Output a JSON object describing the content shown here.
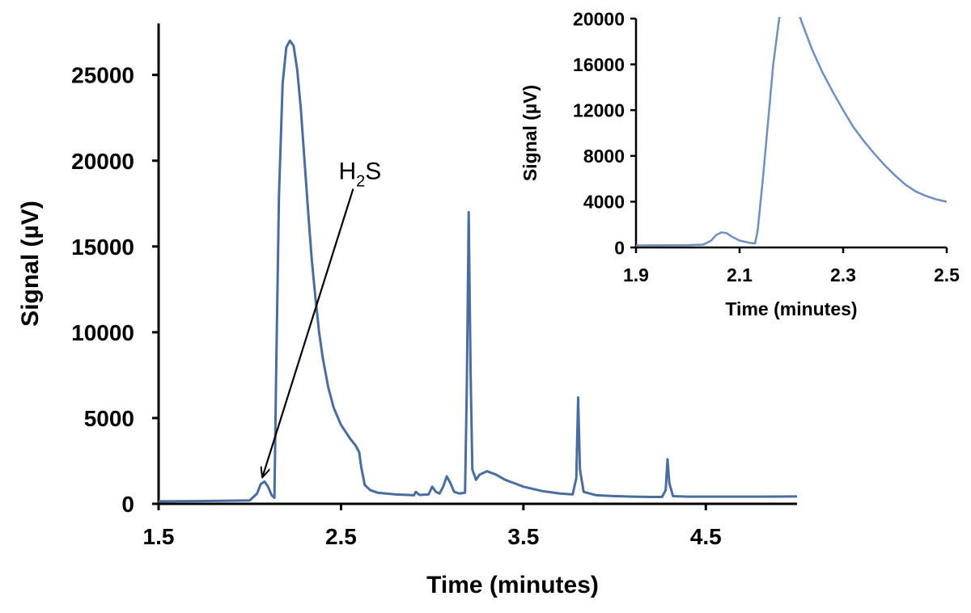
{
  "chart_data": [
    {
      "type": "line",
      "title": "",
      "xlabel": "Time (minutes)",
      "ylabel": "Signal (µV)",
      "xlim": [
        1.5,
        5.0
      ],
      "ylim": [
        0,
        28000
      ],
      "xticks": [
        "1.5",
        "2.5",
        "3.5",
        "4.5"
      ],
      "yticks": [
        "0",
        "5000",
        "10000",
        "15000",
        "20000",
        "25000"
      ],
      "grid": false,
      "line_color": "#4a6d9e",
      "annotation": {
        "text": "H",
        "sub": "2",
        "suffix": "S",
        "point": [
          2.07,
          1300
        ],
        "text_at": [
          2.62,
          19400
        ]
      },
      "series": [
        {
          "x": [
            1.5,
            1.7,
            1.9,
            2.0,
            2.04,
            2.06,
            2.08,
            2.1,
            2.12,
            2.135,
            2.145,
            2.16,
            2.18,
            2.2,
            2.22,
            2.24,
            2.26,
            2.28,
            2.3,
            2.32,
            2.34,
            2.36,
            2.38,
            2.4,
            2.43,
            2.46,
            2.5,
            2.55,
            2.58,
            2.6,
            2.61,
            2.63,
            2.66,
            2.7,
            2.8,
            2.9,
            2.91,
            2.93,
            2.98,
            3.0,
            3.02,
            3.04,
            3.06,
            3.08,
            3.1,
            3.12,
            3.15,
            3.18,
            3.19,
            3.2,
            3.21,
            3.22,
            3.24,
            3.26,
            3.3,
            3.35,
            3.4,
            3.5,
            3.6,
            3.7,
            3.77,
            3.79,
            3.8,
            3.81,
            3.83,
            3.9,
            4.0,
            4.1,
            4.2,
            4.26,
            4.28,
            4.29,
            4.3,
            4.32,
            4.4,
            4.6,
            4.8,
            5.0
          ],
          "y": [
            150,
            160,
            180,
            200,
            600,
            1150,
            1300,
            1000,
            500,
            350,
            8000,
            18000,
            24500,
            26600,
            27000,
            26700,
            25300,
            23000,
            20000,
            17000,
            14200,
            12000,
            10000,
            8500,
            6800,
            5600,
            4600,
            3800,
            3400,
            3000,
            2200,
            1100,
            800,
            650,
            550,
            500,
            700,
            520,
            550,
            1000,
            700,
            600,
            1000,
            1600,
            1200,
            700,
            600,
            650,
            7000,
            17000,
            8000,
            2000,
            1400,
            1700,
            1900,
            1700,
            1400,
            1000,
            750,
            600,
            550,
            1500,
            6200,
            2000,
            700,
            500,
            450,
            420,
            400,
            400,
            800,
            2600,
            1200,
            450,
            420,
            420,
            420,
            430
          ]
        }
      ]
    },
    {
      "type": "line",
      "title": "",
      "xlabel": "Time (minutes)",
      "ylabel": "Signal (µV)",
      "xlim": [
        1.9,
        2.5
      ],
      "ylim": [
        0,
        20000
      ],
      "xticks": [
        "1.9",
        "2.1",
        "2.3",
        "2.5"
      ],
      "yticks": [
        "0",
        "4000",
        "8000",
        "12000",
        "16000",
        "20000"
      ],
      "grid": false,
      "line_color": "#6f8fbf",
      "series": [
        {
          "x": [
            1.9,
            1.95,
            2.0,
            2.03,
            2.045,
            2.055,
            2.065,
            2.075,
            2.085,
            2.1,
            2.12,
            2.13,
            2.135,
            2.145,
            2.155,
            2.165,
            2.175,
            2.18,
            2.21,
            2.22,
            2.24,
            2.26,
            2.28,
            2.3,
            2.32,
            2.34,
            2.36,
            2.38,
            2.4,
            2.42,
            2.44,
            2.46,
            2.48,
            2.5
          ],
          "y": [
            180,
            190,
            200,
            250,
            600,
            1100,
            1320,
            1250,
            950,
            600,
            400,
            350,
            1500,
            6000,
            11000,
            16000,
            19500,
            21000,
            21000,
            19700,
            17300,
            15300,
            13600,
            12000,
            10500,
            9300,
            8200,
            7200,
            6300,
            5500,
            4900,
            4500,
            4200,
            4000
          ]
        }
      ]
    }
  ]
}
